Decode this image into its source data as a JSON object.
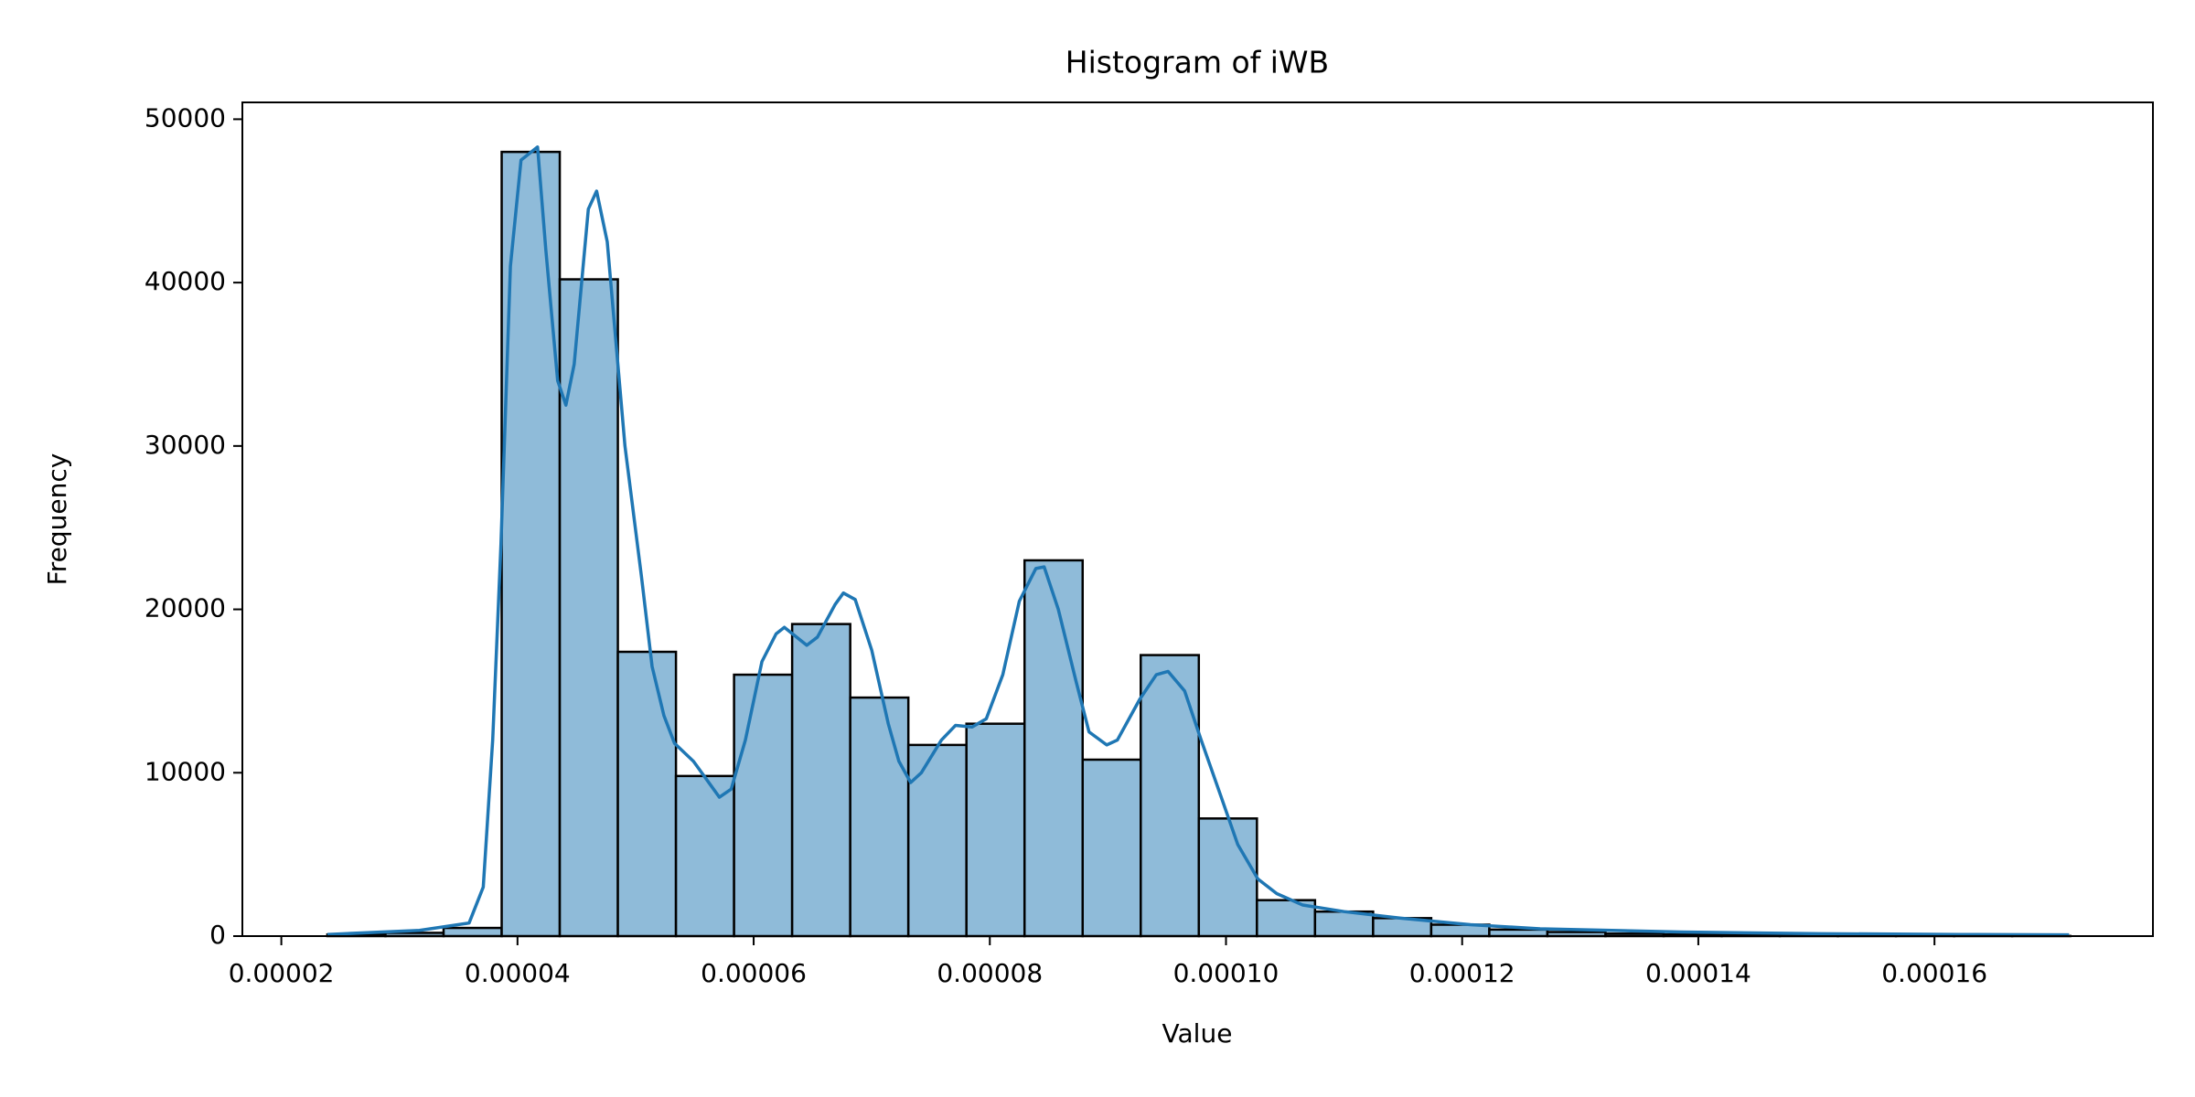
{
  "chart_data": {
    "type": "histogram",
    "title": "Histogram of iWB",
    "x_label": "Value",
    "y_label": "Frequency",
    "bins": [
      2.39e-05,
      2.882e-05,
      3.374e-05,
      3.866e-05,
      4.358e-05,
      4.85e-05,
      5.342e-05,
      5.834e-05,
      6.326e-05,
      6.818e-05,
      7.31e-05,
      7.802e-05,
      8.294e-05,
      8.786e-05,
      9.278e-05,
      9.77e-05,
      0.00010262,
      0.00010754,
      0.00011246,
      0.00011738,
      0.0001223,
      0.00012722,
      0.00013214,
      0.00013706,
      0.00014198,
      0.0001469,
      0.00015182,
      0.00015674,
      0.00016166,
      0.00016658,
      0.0001715
    ],
    "values": [
      100,
      200,
      500,
      48000,
      40200,
      17400,
      9800,
      16000,
      19100,
      14600,
      11700,
      13000,
      23000,
      10800,
      17200,
      7200,
      2200,
      1500,
      1100,
      700,
      400,
      250,
      150,
      100,
      80,
      60,
      40,
      30,
      20,
      10
    ],
    "color": "#8fbbd9",
    "edge_color": "#000000",
    "kde": {
      "color": "#1f77b4",
      "x": [
        2.39e-05,
        3.17e-05,
        3.59e-05,
        3.71e-05,
        3.79e-05,
        3.86e-05,
        3.94e-05,
        4.03e-05,
        4.17e-05,
        4.24e-05,
        4.34e-05,
        4.41e-05,
        4.48e-05,
        4.6e-05,
        4.67e-05,
        4.76e-05,
        4.91e-05,
        5.05e-05,
        5.14e-05,
        5.24e-05,
        5.33e-05,
        5.49e-05,
        5.63e-05,
        5.71e-05,
        5.81e-05,
        5.93e-05,
        6.07e-05,
        6.19e-05,
        6.26e-05,
        6.45e-05,
        6.54e-05,
        6.69e-05,
        6.76e-05,
        6.86e-05,
        7e-05,
        7.14e-05,
        7.23e-05,
        7.33e-05,
        7.42e-05,
        7.59e-05,
        7.71e-05,
        7.85e-05,
        7.97e-05,
        8.11e-05,
        8.25e-05,
        8.39e-05,
        8.46e-05,
        8.58e-05,
        8.73e-05,
        8.84e-05,
        8.99e-05,
        9.08e-05,
        9.27e-05,
        9.41e-05,
        9.51e-05,
        9.65e-05,
        9.79e-05,
        9.96e-05,
        0.000101,
        0.0001027,
        0.0001043,
        0.0001065,
        0.00011,
        0.0001148,
        0.0001207,
        0.0001266,
        0.0001385,
        0.0001504,
        0.0001622,
        0.0001714
      ],
      "values": [
        100,
        350,
        800,
        3000,
        12000,
        24000,
        41000,
        47500,
        48300,
        42000,
        34000,
        32500,
        35000,
        44500,
        45600,
        42500,
        30000,
        22000,
        16500,
        13500,
        11800,
        10700,
        9300,
        8500,
        9000,
        12000,
        16800,
        18500,
        18900,
        17800,
        18300,
        20300,
        21000,
        20600,
        17500,
        13000,
        10700,
        9400,
        10000,
        12000,
        12900,
        12800,
        13300,
        16000,
        20500,
        22500,
        22600,
        20000,
        15600,
        12500,
        11700,
        12000,
        14500,
        16000,
        16200,
        15000,
        12000,
        8500,
        5600,
        3500,
        2600,
        1900,
        1500,
        1100,
        700,
        450,
        250,
        150,
        100,
        80
      ]
    },
    "xlim": [
      1.67e-05,
      0.0001785
    ],
    "ylim": [
      0,
      51030
    ],
    "xticks": [
      2e-05,
      4e-05,
      6e-05,
      8e-05,
      {
        "value": 0.0001,
        "label": "0.00010"
      },
      0.00012,
      0.00014,
      0.00016
    ],
    "yticks": [
      0,
      10000,
      20000,
      30000,
      40000,
      50000
    ]
  }
}
